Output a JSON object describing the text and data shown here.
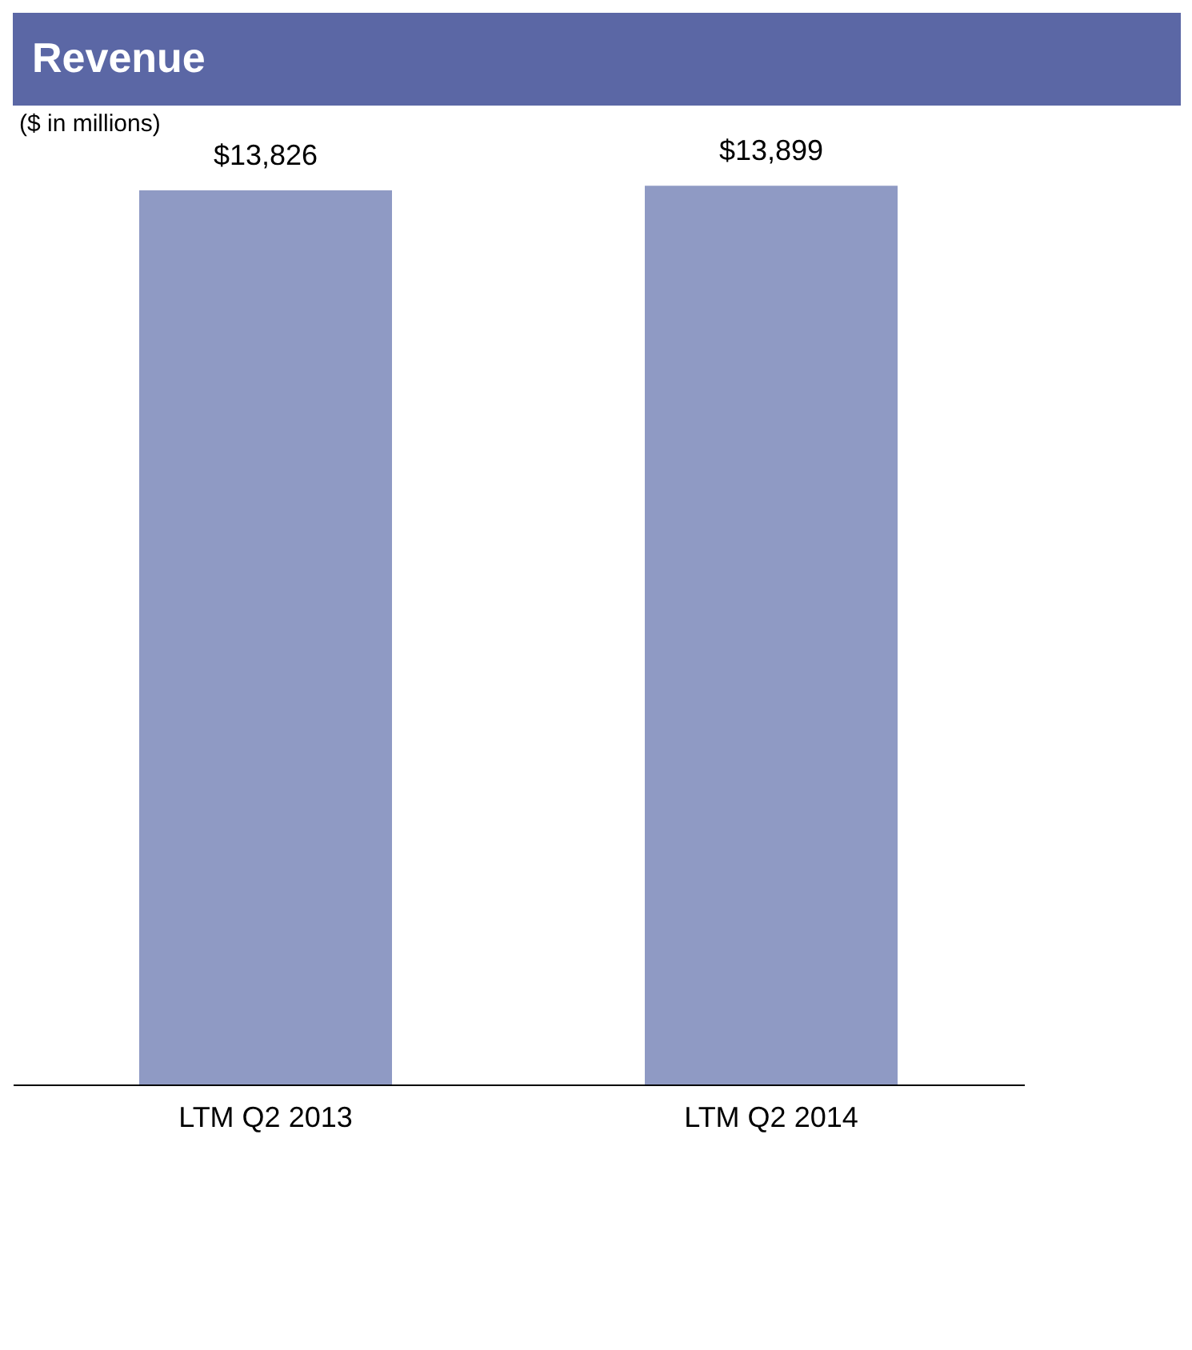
{
  "chart_data": {
    "type": "bar",
    "title": "Revenue",
    "subtitle": "($ in millions)",
    "categories": [
      "LTM Q2 2013",
      "LTM Q2 2014"
    ],
    "series": [
      {
        "color": "#8f9ac4",
        "values": [
          13826,
          13899
        ],
        "value_labels": [
          "$13,826",
          "$13,899"
        ]
      }
    ],
    "grid": false
  }
}
